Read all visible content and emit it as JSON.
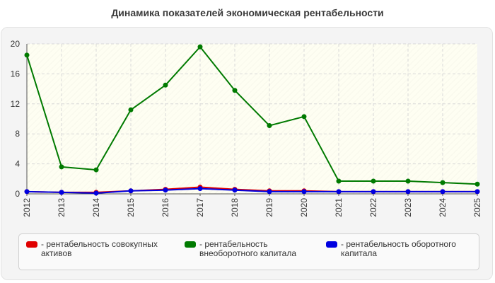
{
  "chart_data": {
    "type": "line",
    "title": "Динамика показателей экономическая рентабельности",
    "xlabel": "",
    "ylabel": "",
    "x": [
      "2012",
      "2013",
      "2014",
      "2015",
      "2016",
      "2017",
      "2018",
      "2019",
      "2020",
      "2021",
      "2022",
      "2023",
      "2024",
      "2025"
    ],
    "ylim": [
      0,
      20
    ],
    "yticks": [
      "0",
      "4",
      "8",
      "12",
      "16",
      "20"
    ],
    "grid": true,
    "legend_position": "bottom",
    "series": [
      {
        "name": "- рентабельность совокупных активов",
        "color": "#e00000",
        "values": [
          0.3,
          0.2,
          0.2,
          0.4,
          0.6,
          0.9,
          0.6,
          0.4,
          0.4,
          0.3,
          0.3,
          0.3,
          0.3,
          0.3
        ]
      },
      {
        "name": "- рентабельность внеоборотного капитала",
        "color": "#007a00",
        "values": [
          18.5,
          3.6,
          3.2,
          11.2,
          14.5,
          19.6,
          13.8,
          9.1,
          10.3,
          1.7,
          1.7,
          1.7,
          1.5,
          1.3
        ]
      },
      {
        "name": "- рентабельность оборотного капитала",
        "color": "#0000e0",
        "values": [
          0.3,
          0.2,
          0.1,
          0.4,
          0.5,
          0.7,
          0.5,
          0.3,
          0.3,
          0.3,
          0.3,
          0.3,
          0.3,
          0.3
        ]
      }
    ]
  }
}
